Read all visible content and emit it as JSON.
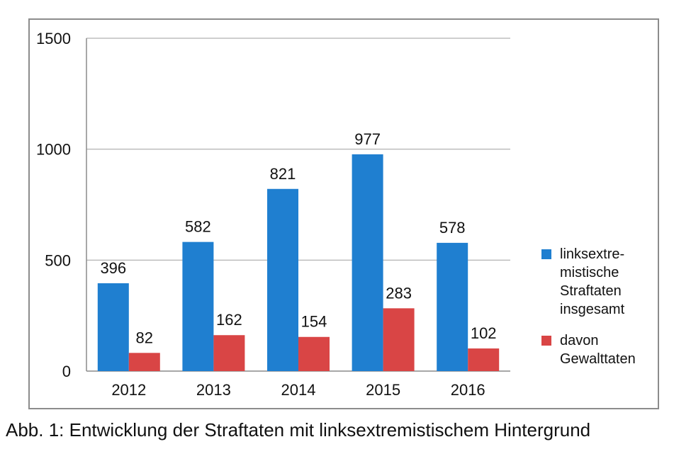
{
  "chart_data": {
    "type": "bar",
    "categories": [
      "2012",
      "2013",
      "2014",
      "2015",
      "2016"
    ],
    "series": [
      {
        "name": "linksextre-\nmistische\nStraftaten\ninsgesamt",
        "color": "#1f7fd0",
        "values": [
          396,
          582,
          821,
          977,
          578
        ],
        "labels": [
          "396",
          "582",
          "821",
          "977",
          "578"
        ]
      },
      {
        "name": "davon\nGewalttaten",
        "color": "#d94545",
        "values": [
          82,
          162,
          154,
          283,
          102
        ],
        "labels": [
          "82",
          "162",
          "154",
          "283",
          "102"
        ]
      }
    ],
    "ylim": [
      0,
      1500
    ],
    "yticks": [
      "0",
      "500",
      "1000",
      "1500"
    ],
    "ytick_values": [
      0,
      500,
      1000,
      1500
    ],
    "grid": true,
    "legend_position": "right",
    "xlabel": "",
    "ylabel": ""
  },
  "caption": "Abb. 1: Entwicklung der Straftaten mit linksextremistischem Hintergrund"
}
